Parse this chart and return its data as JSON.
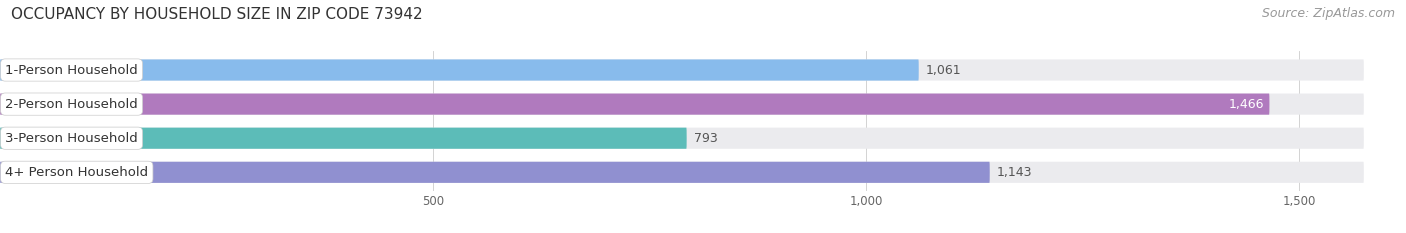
{
  "title": "OCCUPANCY BY HOUSEHOLD SIZE IN ZIP CODE 73942",
  "source": "Source: ZipAtlas.com",
  "categories": [
    "1-Person Household",
    "2-Person Household",
    "3-Person Household",
    "4+ Person Household"
  ],
  "values": [
    1061,
    1466,
    793,
    1143
  ],
  "bar_colors": [
    "#88bbec",
    "#b07abe",
    "#5cbcb8",
    "#9090d0"
  ],
  "bar_labels": [
    "1,061",
    "1,466",
    "793",
    "1,143"
  ],
  "label_inside": [
    false,
    true,
    false,
    false
  ],
  "xlim": [
    0,
    1575
  ],
  "xticks": [
    500,
    1000,
    1500
  ],
  "background_color": "#ffffff",
  "bar_bg_color": "#ebebee",
  "title_fontsize": 11,
  "source_fontsize": 9,
  "bar_label_fontsize": 9,
  "cat_label_fontsize": 9.5
}
